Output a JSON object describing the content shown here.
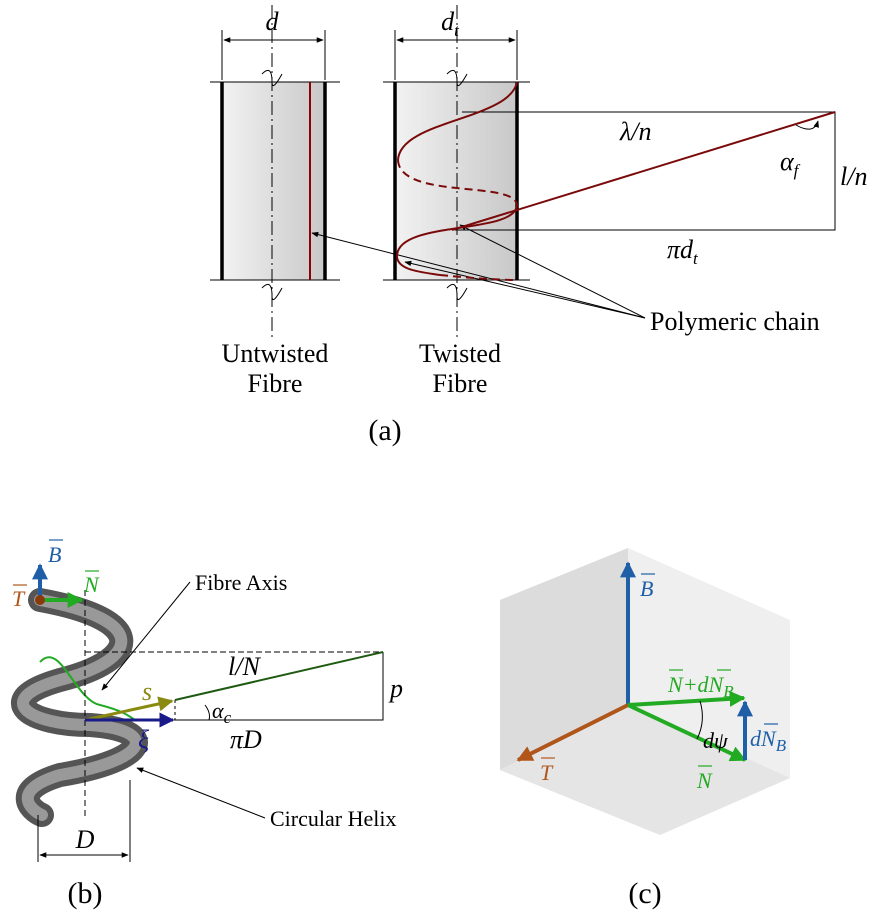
{
  "panel_a": {
    "untwisted_width": "d",
    "twisted_width": {
      "main": "d",
      "sub": "t"
    },
    "chain_length": "λ/n",
    "angle": {
      "main": "α",
      "sub": "f"
    },
    "pitch": "l/n",
    "circumference": {
      "main": "πd",
      "sub": "t"
    },
    "pointer": "Polymeric chain",
    "untwisted_label": [
      "Untwisted",
      "Fibre"
    ],
    "twisted_label": [
      "Twisted",
      "Fibre"
    ],
    "caption": "(a)"
  },
  "panel_b": {
    "binormal": "B",
    "normal": "N",
    "tangent": "T",
    "axis_label": "Fibre Axis",
    "length": "l/N",
    "pitch": "p",
    "arc": "s",
    "angle": {
      "main": "α",
      "sub": "c"
    },
    "coordinate": "ξ",
    "circumference": "πD",
    "helix_label": "Circular Helix",
    "diameter": "D",
    "caption": "(b)"
  },
  "panel_c": {
    "binormal": "B",
    "sum": {
      "n": "N",
      "plus": "+d",
      "nb": "N",
      "sub": "B"
    },
    "angle": "dψ",
    "increment": {
      "d": "d",
      "n": "N",
      "sub": "B"
    },
    "tangent": "T",
    "normal": "N",
    "caption": "(c)"
  }
}
